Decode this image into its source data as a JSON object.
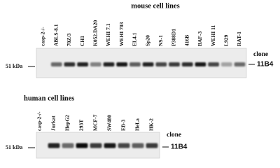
{
  "panels": [
    {
      "title": "mouse cell lines",
      "lanes": [
        "casp-2-/-",
        "ABLS-8.1",
        "70Z/3",
        "CH1",
        "K052.DA20",
        "WEHI 7.1",
        "WEHI 703",
        "EL4.1",
        "Sp20",
        "NS-1",
        "P388D1",
        "416B",
        "BAF-3",
        "WEHI 11",
        "L929",
        "RAT-1"
      ],
      "marker": "51 kDa",
      "clone_label": "clone",
      "clone": "11B4"
    },
    {
      "title": "human cell lines",
      "lanes": [
        "casp-2-/-",
        "Jurkat",
        "HepG2",
        "293T",
        "MCF-7",
        "SW480",
        "EB-3",
        "HeLa",
        "HK-2"
      ],
      "marker": "51 kDa",
      "clone_label": "clone",
      "clone": "11B4"
    }
  ]
}
